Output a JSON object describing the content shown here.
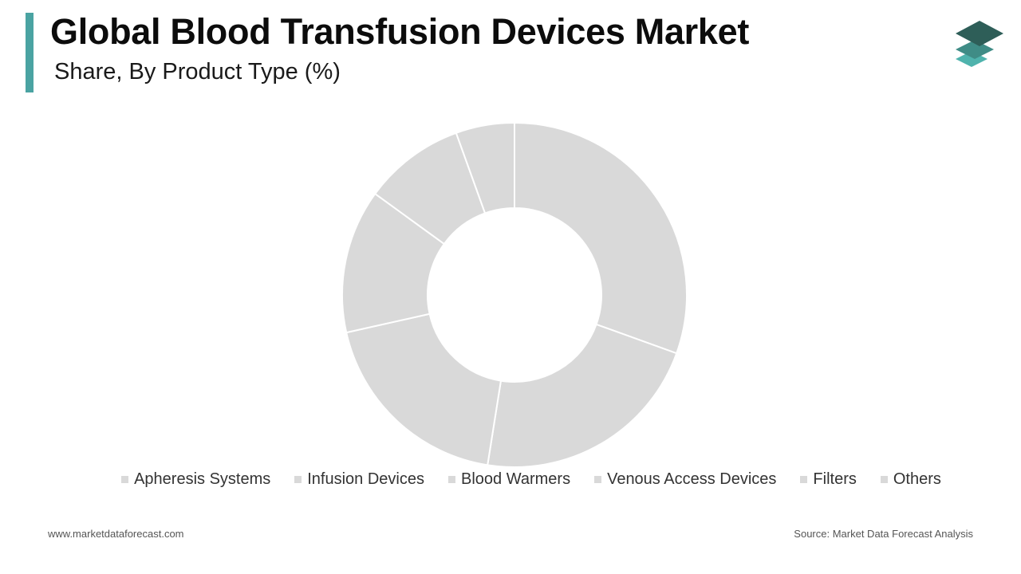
{
  "header": {
    "title": "Global Blood Transfusion Devices Market",
    "subtitle": "Share, By Product Type (%)"
  },
  "footer": {
    "website": "www.marketdataforecast.com",
    "source": "Source: Market Data Forecast Analysis"
  },
  "colors": {
    "accent": "#4aa3a2",
    "slice_fill": "#d9d9d9",
    "slice_stroke": "#ffffff",
    "logo_dark": "#2e5e58",
    "logo_mid": "#3f8c86",
    "logo_light": "#4fb3ad"
  },
  "icons": {
    "logo": "stacked-layers-icon"
  },
  "chart_data": {
    "type": "pie",
    "donut": true,
    "title": "Global Blood Transfusion Devices Market",
    "subtitle": "Share, By Product Type (%)",
    "categories": [
      "Apheresis Systems",
      "Infusion Devices",
      "Blood Warmers",
      "Venous Access Devices",
      "Filters",
      "Others"
    ],
    "values": [
      30.5,
      22.0,
      19.0,
      13.5,
      9.5,
      5.5
    ],
    "legend_position": "bottom",
    "data_labels": false
  }
}
